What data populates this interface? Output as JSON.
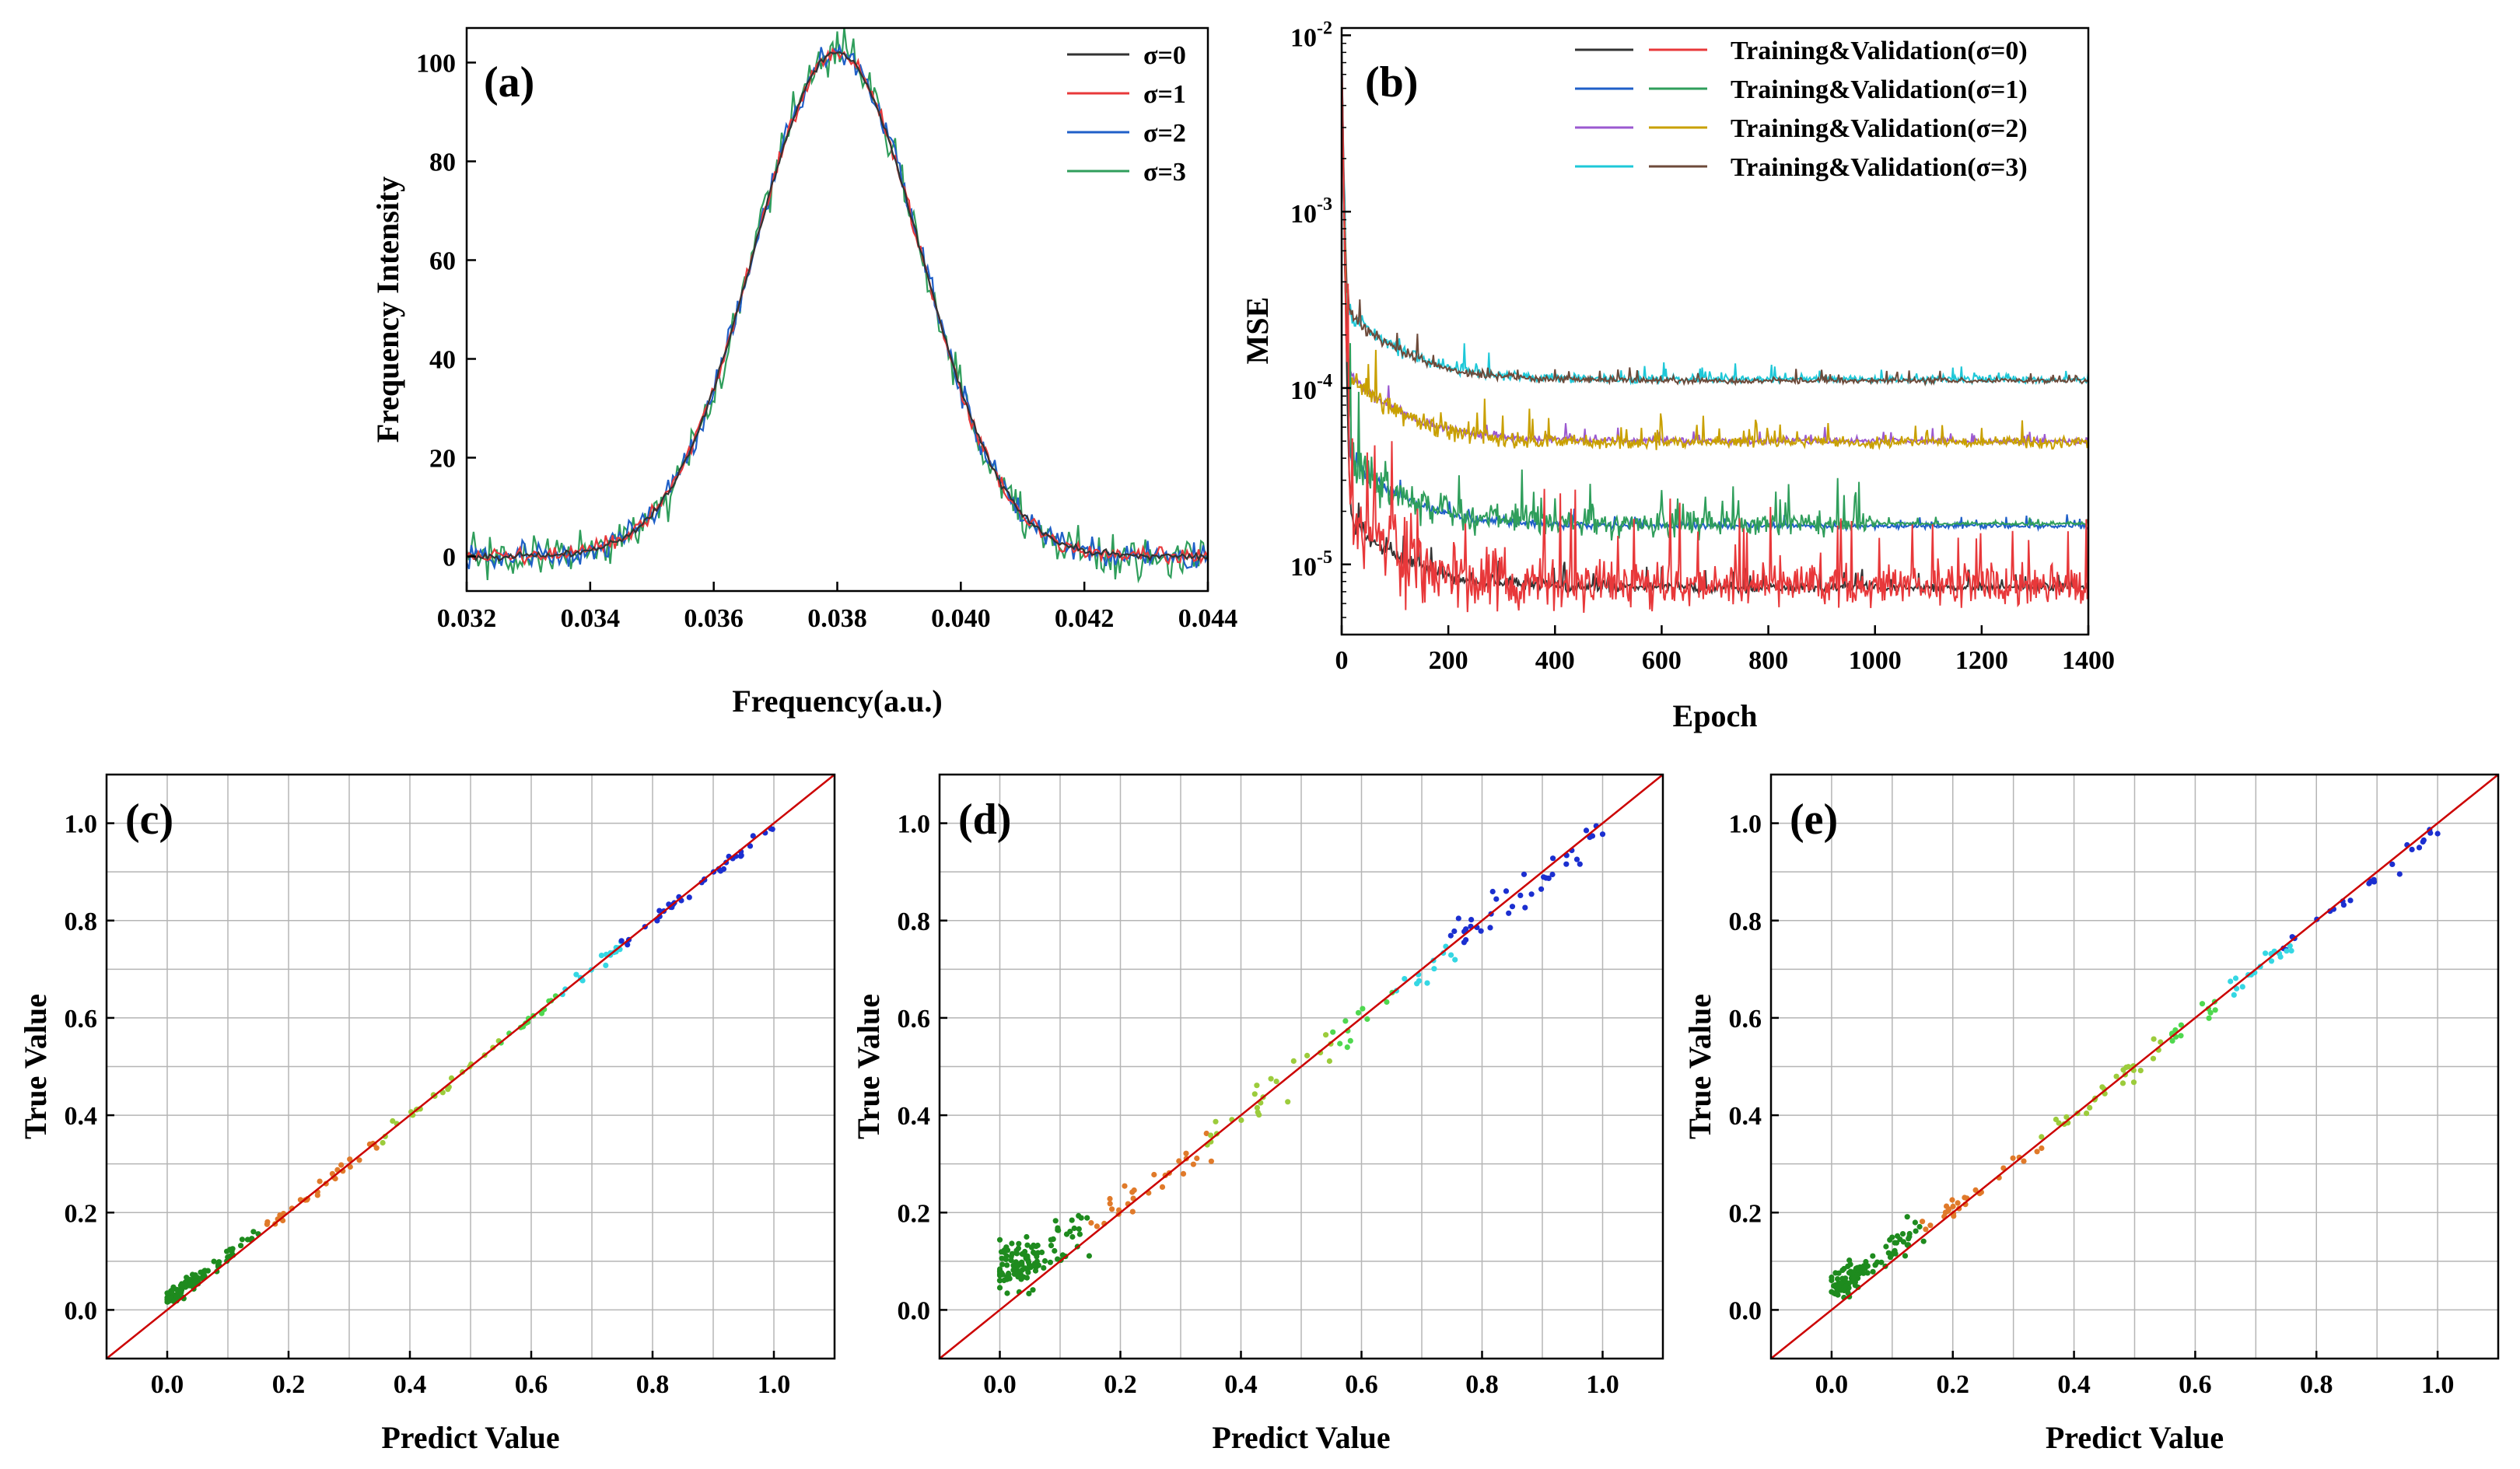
{
  "chart_data": [
    {
      "id": "a",
      "type": "line",
      "panel_label": "(a)",
      "xlabel": "Frequency(a.u.)",
      "ylabel": "Frequency Intensity",
      "xlim": [
        0.032,
        0.044
      ],
      "ylim": [
        -7,
        107
      ],
      "xticks": [
        0.032,
        0.034,
        0.036,
        0.038,
        0.04,
        0.042,
        0.044
      ],
      "xtick_labels": [
        "0.032",
        "0.034",
        "0.036",
        "0.038",
        "0.040",
        "0.042",
        "0.044"
      ],
      "yticks": [
        0,
        20,
        40,
        60,
        80,
        100
      ],
      "ytick_labels": [
        "0",
        "20",
        "40",
        "60",
        "80",
        "100"
      ],
      "legend_position": "top-right",
      "series": [
        {
          "name": "σ=0",
          "color": "#333333",
          "peak_x": 0.038,
          "peak_y": 102,
          "sigma_x": 0.00135,
          "noise": 0.5
        },
        {
          "name": "σ=1",
          "color": "#e8383a",
          "peak_x": 0.038,
          "peak_y": 102,
          "sigma_x": 0.00135,
          "noise": 1.2
        },
        {
          "name": "σ=2",
          "color": "#1f5fc8",
          "peak_x": 0.038,
          "peak_y": 102,
          "sigma_x": 0.00135,
          "noise": 2.2
        },
        {
          "name": "σ=3",
          "color": "#2f9e5b",
          "peak_x": 0.038,
          "peak_y": 102,
          "sigma_x": 0.00135,
          "noise": 3.2
        }
      ]
    },
    {
      "id": "b",
      "type": "line",
      "yscale": "log",
      "panel_label": "(b)",
      "xlabel": "Epoch",
      "ylabel": "MSE",
      "xlim": [
        0,
        1400
      ],
      "ylim": [
        4e-06,
        0.011
      ],
      "xticks": [
        0,
        200,
        400,
        600,
        800,
        1000,
        1200,
        1400
      ],
      "xtick_labels": [
        "0",
        "200",
        "400",
        "600",
        "800",
        "1000",
        "1200",
        "1400"
      ],
      "ytick_labels": [
        {
          "base": "10",
          "exp": "-5",
          "value": 1e-05
        },
        {
          "base": "10",
          "exp": "-4",
          "value": 0.0001
        },
        {
          "base": "10",
          "exp": "-3",
          "value": 0.001
        },
        {
          "base": "10",
          "exp": "-2",
          "value": 0.01
        }
      ],
      "legend_position": "top-right",
      "legend": [
        {
          "label": "Training&Validation(σ=0)",
          "train_color": "#333333",
          "val_color": "#e8383a"
        },
        {
          "label": "Training&Validation(σ=1)",
          "train_color": "#1f5fc8",
          "val_color": "#2f9e5b"
        },
        {
          "label": "Training&Validation(σ=2)",
          "train_color": "#9b59d0",
          "val_color": "#c9a000"
        },
        {
          "label": "Training&Validation(σ=3)",
          "train_color": "#1ec8d8",
          "val_color": "#6d4a3a"
        }
      ],
      "series": [
        {
          "name": "σ=3 training",
          "color": "#1ec8d8",
          "start": 0.0095,
          "final": 0.000112,
          "noise": 0.04
        },
        {
          "name": "σ=3 validation",
          "color": "#6d4a3a",
          "start": 0.009,
          "final": 0.00011,
          "noise": 0.03
        },
        {
          "name": "σ=2 training",
          "color": "#9b59d0",
          "start": 0.0092,
          "final": 5e-05,
          "noise": 0.03
        },
        {
          "name": "σ=2 validation",
          "color": "#c9a000",
          "start": 0.0088,
          "final": 4.9e-05,
          "noise": 0.06
        },
        {
          "name": "σ=1 training",
          "color": "#1f5fc8",
          "start": 0.009,
          "final": 1.65e-05,
          "noise": 0.03
        },
        {
          "name": "σ=1 validation",
          "color": "#2f9e5b",
          "start": 0.0087,
          "final": 1.7e-05,
          "noise": 0.12
        },
        {
          "name": "σ=0 training",
          "color": "#333333",
          "start": 0.0089,
          "final": 7.4e-06,
          "noise": 0.05
        },
        {
          "name": "σ=0 validation",
          "color": "#e8383a",
          "start": 0.0086,
          "final": 7.6e-06,
          "noise": 0.22
        }
      ]
    },
    {
      "id": "c",
      "type": "scatter",
      "panel_label": "(c)",
      "xlabel": "Predict Value",
      "ylabel": "True Value",
      "xlim": [
        -0.1,
        1.1
      ],
      "ylim": [
        -0.1,
        1.1
      ],
      "ticks": [
        0.0,
        0.2,
        0.4,
        0.6,
        0.8,
        1.0
      ],
      "tick_labels": [
        "0.0",
        "0.2",
        "0.4",
        "0.6",
        "0.8",
        "1.0"
      ],
      "reference_line": {
        "from": [
          -0.1,
          -0.1
        ],
        "to": [
          1.1,
          1.1
        ],
        "color": "#cc0000"
      },
      "scatter_spread": 0.012,
      "offset_low": 0.02,
      "color_bands": [
        {
          "max": 0.15,
          "color": "#1e8b1e"
        },
        {
          "max": 0.35,
          "color": "#e07a2a"
        },
        {
          "max": 0.55,
          "color": "#9ccc3c"
        },
        {
          "max": 0.65,
          "color": "#4fd84f"
        },
        {
          "max": 0.75,
          "color": "#35d7e3"
        },
        {
          "max": 1.01,
          "color": "#1b2fd0"
        }
      ]
    },
    {
      "id": "d",
      "type": "scatter",
      "panel_label": "(d)",
      "xlabel": "Predict Value",
      "ylabel": "True Value",
      "xlim": [
        -0.1,
        1.1
      ],
      "ylim": [
        -0.1,
        1.1
      ],
      "ticks": [
        0.0,
        0.2,
        0.4,
        0.6,
        0.8,
        1.0
      ],
      "tick_labels": [
        "0.0",
        "0.2",
        "0.4",
        "0.6",
        "0.8",
        "1.0"
      ],
      "reference_line": {
        "from": [
          -0.1,
          -0.1
        ],
        "to": [
          1.1,
          1.1
        ],
        "color": "#cc0000"
      },
      "scatter_spread": 0.04,
      "offset_low": 0.07,
      "color_bands": [
        {
          "max": 0.15,
          "color": "#1e8b1e"
        },
        {
          "max": 0.35,
          "color": "#e07a2a"
        },
        {
          "max": 0.55,
          "color": "#9ccc3c"
        },
        {
          "max": 0.65,
          "color": "#4fd84f"
        },
        {
          "max": 0.75,
          "color": "#35d7e3"
        },
        {
          "max": 1.01,
          "color": "#1b2fd0"
        }
      ]
    },
    {
      "id": "e",
      "type": "scatter",
      "panel_label": "(e)",
      "xlabel": "Predict Value",
      "ylabel": "True Value",
      "xlim": [
        -0.1,
        1.1
      ],
      "ylim": [
        -0.1,
        1.1
      ],
      "ticks": [
        0.0,
        0.2,
        0.4,
        0.6,
        0.8,
        1.0
      ],
      "tick_labels": [
        "0.0",
        "0.2",
        "0.4",
        "0.6",
        "0.8",
        "1.0"
      ],
      "reference_line": {
        "from": [
          -0.1,
          -0.1
        ],
        "to": [
          1.1,
          1.1
        ],
        "color": "#cc0000"
      },
      "scatter_spread": 0.022,
      "offset_low": 0.04,
      "color_bands": [
        {
          "max": 0.15,
          "color": "#1e8b1e"
        },
        {
          "max": 0.35,
          "color": "#e07a2a"
        },
        {
          "max": 0.55,
          "color": "#9ccc3c"
        },
        {
          "max": 0.65,
          "color": "#4fd84f"
        },
        {
          "max": 0.75,
          "color": "#35d7e3"
        },
        {
          "max": 1.01,
          "color": "#1b2fd0"
        }
      ]
    }
  ]
}
